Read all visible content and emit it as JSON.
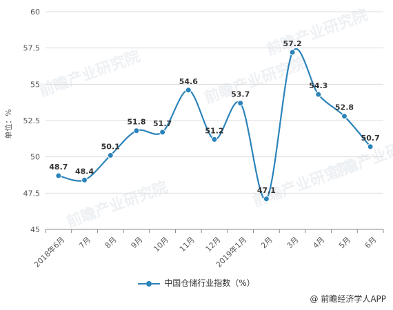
{
  "chart_data": {
    "type": "line",
    "categories": [
      "2018年6月",
      "7月",
      "8月",
      "9月",
      "10月",
      "11月",
      "12月",
      "2019年1月",
      "2月",
      "3月",
      "4月",
      "5月",
      "6月"
    ],
    "series": [
      {
        "name": "中国仓储行业指数（%）",
        "values": [
          48.7,
          48.4,
          50.1,
          51.8,
          51.7,
          54.6,
          51.2,
          53.7,
          47.1,
          57.2,
          54.3,
          52.8,
          50.7
        ]
      }
    ],
    "data_labels": [
      "48.7",
      "48.4",
      "50.1",
      "51.8",
      "51.7",
      "54.6",
      "51.2",
      "53.7",
      "47.1",
      "57.2",
      "54.3",
      "52.8",
      "50.7"
    ],
    "ylabel": "单位：%",
    "ylim": [
      45,
      60
    ],
    "yticks": [
      45,
      47.5,
      50,
      52.5,
      55,
      57.5,
      60
    ],
    "ytick_labels": [
      "45",
      "47.5",
      "50",
      "52.5",
      "55",
      "57.5",
      "60"
    ],
    "grid": true,
    "legend_position": "bottom",
    "line_color": "#2b83ba",
    "watermark": "前瞻产业研究院"
  },
  "credit": "@ 前瞻经济学人APP"
}
